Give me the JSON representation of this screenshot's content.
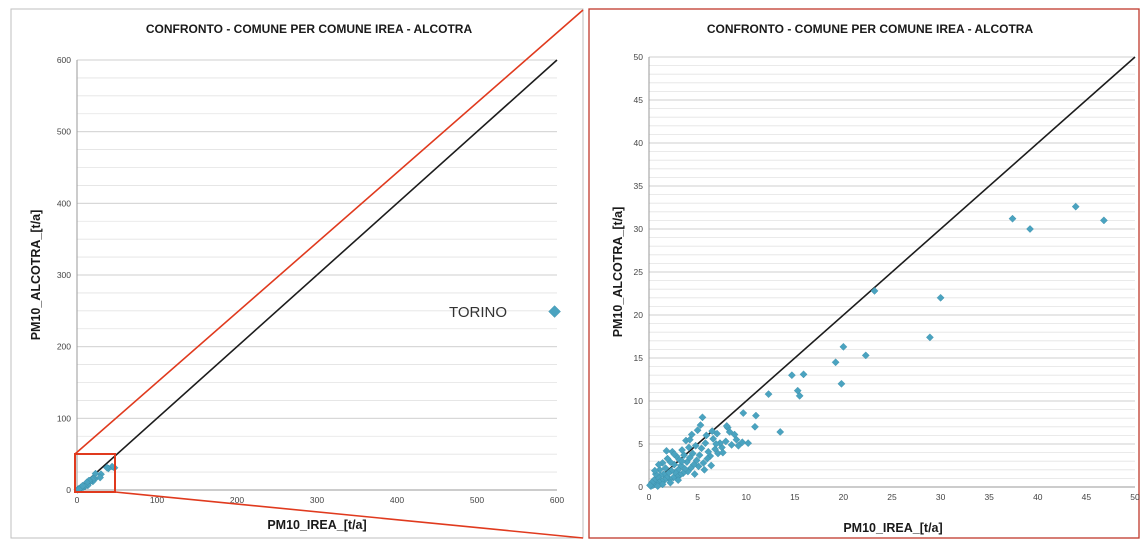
{
  "chart_data": [
    {
      "type": "scatter",
      "title": "CONFRONTO - COMUNE PER COMUNE IREA - ALCOTRA",
      "xlabel": "PM10_IREA_[t/a]",
      "ylabel": "PM10_ALCOTRA_[t/a]",
      "xlim": [
        0,
        600
      ],
      "ylim": [
        0,
        600
      ],
      "x_ticks": [
        "0",
        "100",
        "200",
        "300",
        "400",
        "500",
        "600"
      ],
      "y_ticks": [
        "0",
        "100",
        "200",
        "300",
        "400",
        "500",
        "600"
      ],
      "grid": true,
      "marker_color": "#4aa3c0",
      "reference_line": {
        "from": [
          0,
          0
        ],
        "to": [
          600,
          600
        ]
      },
      "annotation": {
        "text": "TORINO",
        "x": 597,
        "y": 249
      },
      "points": [
        [
          597,
          249
        ],
        [
          46.8,
          31
        ],
        [
          43.9,
          32.6
        ],
        [
          39.2,
          30
        ],
        [
          37.4,
          31.2
        ],
        [
          30,
          22
        ],
        [
          28.9,
          17.4
        ],
        [
          23.2,
          22.8
        ],
        [
          22.3,
          15.3
        ],
        [
          20,
          16.3
        ],
        [
          19.8,
          12
        ],
        [
          19.2,
          14.5
        ],
        [
          15.9,
          13.1
        ],
        [
          15.5,
          10.6
        ],
        [
          15.3,
          11.2
        ],
        [
          14.7,
          13
        ],
        [
          13.5,
          6.4
        ],
        [
          12.3,
          10.8
        ],
        [
          10,
          5
        ],
        [
          8,
          4
        ],
        [
          6,
          3
        ],
        [
          4,
          2.5
        ],
        [
          3,
          2
        ],
        [
          2,
          1.5
        ],
        [
          1,
          0.8
        ],
        [
          0.5,
          0.3
        ],
        [
          5,
          4
        ],
        [
          7,
          6
        ],
        [
          2.5,
          1
        ]
      ]
    },
    {
      "type": "scatter",
      "title": "CONFRONTO - COMUNE PER COMUNE IREA - ALCOTRA",
      "xlabel": "PM10_IREA_[t/a]",
      "ylabel": "PM10_ALCOTRA_[t/a]",
      "xlim": [
        0,
        50
      ],
      "ylim": [
        0,
        50
      ],
      "x_ticks": [
        "0",
        "5",
        "10",
        "15",
        "20",
        "25",
        "30",
        "35",
        "40",
        "45",
        "50"
      ],
      "y_ticks": [
        "0",
        "5",
        "10",
        "15",
        "20",
        "25",
        "30",
        "35",
        "40",
        "45",
        "50"
      ],
      "grid": true,
      "marker_color": "#4aa3c0",
      "reference_line": {
        "from": [
          0,
          0
        ],
        "to": [
          50,
          50
        ]
      },
      "points": [
        [
          46.8,
          31
        ],
        [
          43.9,
          32.6
        ],
        [
          39.2,
          30
        ],
        [
          37.4,
          31.2
        ],
        [
          30,
          22
        ],
        [
          28.9,
          17.4
        ],
        [
          23.2,
          22.8
        ],
        [
          22.3,
          15.3
        ],
        [
          20,
          16.3
        ],
        [
          19.8,
          12
        ],
        [
          19.2,
          14.5
        ],
        [
          15.9,
          13.1
        ],
        [
          15.5,
          10.6
        ],
        [
          15.3,
          11.2
        ],
        [
          14.7,
          13
        ],
        [
          13.5,
          6.4
        ],
        [
          12.3,
          10.8
        ],
        [
          11,
          8.3
        ],
        [
          10.9,
          7
        ],
        [
          10.2,
          5.1
        ],
        [
          9.7,
          8.6
        ],
        [
          9.6,
          5.2
        ],
        [
          9.2,
          4.8
        ],
        [
          8.8,
          6.1
        ],
        [
          8.5,
          4.9
        ],
        [
          8.3,
          6.4
        ],
        [
          8.1,
          6.9
        ],
        [
          7.9,
          5.3
        ],
        [
          7.5,
          4.6
        ],
        [
          7.3,
          5.1
        ],
        [
          7.1,
          3.9
        ],
        [
          7,
          6.2
        ],
        [
          6.8,
          4.4
        ],
        [
          6.6,
          5.6
        ],
        [
          6.5,
          6.5
        ],
        [
          6.3,
          3.6
        ],
        [
          6.1,
          4.1
        ],
        [
          6,
          3.3
        ],
        [
          5.8,
          5.1
        ],
        [
          5.6,
          2.8
        ],
        [
          5.5,
          8.1
        ],
        [
          5.4,
          4.5
        ],
        [
          5.3,
          7.2
        ],
        [
          5.2,
          3.7
        ],
        [
          5.1,
          2.4
        ],
        [
          5,
          6.6
        ],
        [
          4.9,
          3.1
        ],
        [
          4.8,
          4.8
        ],
        [
          4.6,
          2.6
        ],
        [
          4.5,
          3.9
        ],
        [
          4.4,
          6.1
        ],
        [
          4.3,
          2.2
        ],
        [
          4.2,
          3.4
        ],
        [
          4.1,
          4.6
        ],
        [
          4,
          1.8
        ],
        [
          3.9,
          2.9
        ],
        [
          3.8,
          5.4
        ],
        [
          3.7,
          2.1
        ],
        [
          3.6,
          3.7
        ],
        [
          3.5,
          1.6
        ],
        [
          3.4,
          4.3
        ],
        [
          3.3,
          2.5
        ],
        [
          3.2,
          1.4
        ],
        [
          3.1,
          3.2
        ],
        [
          3,
          2
        ],
        [
          2.9,
          1.2
        ],
        [
          2.8,
          3.6
        ],
        [
          2.7,
          1.7
        ],
        [
          2.6,
          2.6
        ],
        [
          2.5,
          1.1
        ],
        [
          2.4,
          4.1
        ],
        [
          2.3,
          1.9
        ],
        [
          2.2,
          2.9
        ],
        [
          2.1,
          0.9
        ],
        [
          2,
          1.6
        ],
        [
          1.9,
          3.3
        ],
        [
          1.8,
          1.1
        ],
        [
          1.7,
          2.2
        ],
        [
          1.6,
          0.8
        ],
        [
          1.5,
          1.5
        ],
        [
          1.4,
          2.8
        ],
        [
          1.3,
          0.7
        ],
        [
          1.2,
          1.3
        ],
        [
          1.1,
          2
        ],
        [
          1,
          0.6
        ],
        [
          0.9,
          1.2
        ],
        [
          0.8,
          0.4
        ],
        [
          0.7,
          1.5
        ],
        [
          0.6,
          0.3
        ],
        [
          0.5,
          0.8
        ],
        [
          0.4,
          0.2
        ],
        [
          0.3,
          0.5
        ],
        [
          0.2,
          0.1
        ],
        [
          0.1,
          0.2
        ],
        [
          0.6,
          1.9
        ],
        [
          1.0,
          2.6
        ],
        [
          1.8,
          4.2
        ],
        [
          2.6,
          3.8
        ],
        [
          3.4,
          3.0
        ],
        [
          4.2,
          5.5
        ],
        [
          5.9,
          6.0
        ],
        [
          6.9,
          5.0
        ],
        [
          7.6,
          4.0
        ],
        [
          8.0,
          7.1
        ],
        [
          9.0,
          5.5
        ],
        [
          3.0,
          0.8
        ],
        [
          4.7,
          1.5
        ],
        [
          5.7,
          2.0
        ],
        [
          6.4,
          2.5
        ],
        [
          2.2,
          0.5
        ],
        [
          1.4,
          0.3
        ],
        [
          0.9,
          0.1
        ]
      ]
    }
  ]
}
